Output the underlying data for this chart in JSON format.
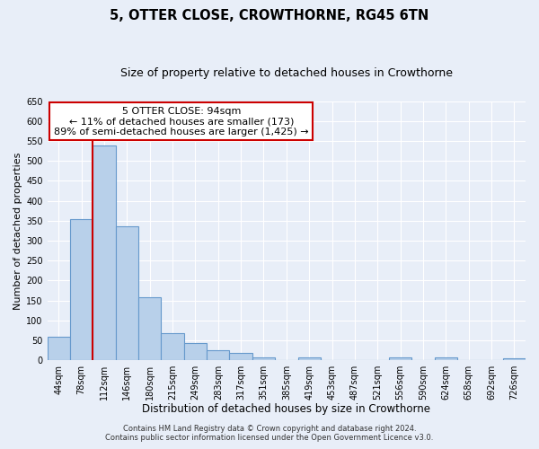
{
  "title": "5, OTTER CLOSE, CROWTHORNE, RG45 6TN",
  "subtitle": "Size of property relative to detached houses in Crowthorne",
  "xlabel": "Distribution of detached houses by size in Crowthorne",
  "ylabel": "Number of detached properties",
  "bar_labels": [
    "44sqm",
    "78sqm",
    "112sqm",
    "146sqm",
    "180sqm",
    "215sqm",
    "249sqm",
    "283sqm",
    "317sqm",
    "351sqm",
    "385sqm",
    "419sqm",
    "453sqm",
    "487sqm",
    "521sqm",
    "556sqm",
    "590sqm",
    "624sqm",
    "658sqm",
    "692sqm",
    "726sqm"
  ],
  "bar_values": [
    58,
    355,
    540,
    337,
    157,
    68,
    42,
    25,
    19,
    8,
    0,
    8,
    0,
    0,
    0,
    6,
    0,
    6,
    0,
    0,
    5
  ],
  "bar_color": "#b8d0ea",
  "bar_edge_color": "#6699cc",
  "vline_x_idx": 1,
  "vline_color": "#cc0000",
  "ylim": [
    0,
    650
  ],
  "yticks": [
    0,
    50,
    100,
    150,
    200,
    250,
    300,
    350,
    400,
    450,
    500,
    550,
    600,
    650
  ],
  "annotation_title": "5 OTTER CLOSE: 94sqm",
  "annotation_line1": "← 11% of detached houses are smaller (173)",
  "annotation_line2": "89% of semi-detached houses are larger (1,425) →",
  "annotation_box_color": "#ffffff",
  "annotation_box_edge": "#cc0000",
  "footer_line1": "Contains HM Land Registry data © Crown copyright and database right 2024.",
  "footer_line2": "Contains public sector information licensed under the Open Government Licence v3.0.",
  "bg_color": "#e8eef8",
  "title_fontsize": 10.5,
  "subtitle_fontsize": 9,
  "xlabel_fontsize": 8.5,
  "ylabel_fontsize": 8,
  "tick_fontsize": 7,
  "footer_fontsize": 6,
  "annot_fontsize": 8
}
